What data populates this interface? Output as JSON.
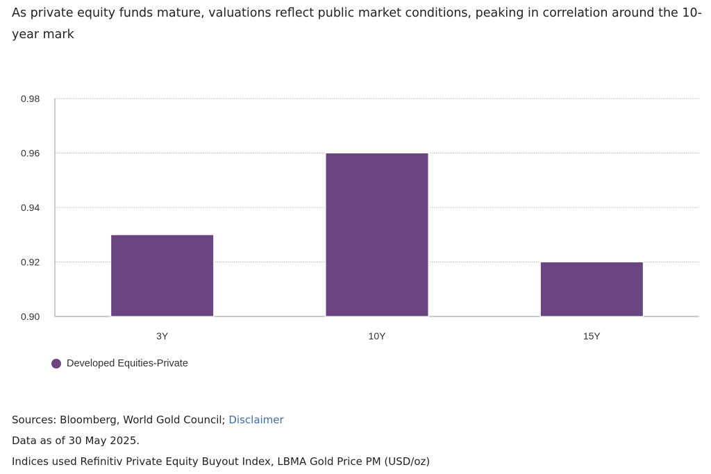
{
  "title": "As private equity funds mature, valuations reflect public market conditions, peaking in correlation around the 10-year mark",
  "chart_data": {
    "type": "bar",
    "categories": [
      "3Y",
      "10Y",
      "15Y"
    ],
    "series": [
      {
        "name": "Developed Equities-Private",
        "values": [
          0.93,
          0.96,
          0.92
        ]
      }
    ],
    "yticks": [
      "0.90",
      "0.92",
      "0.94",
      "0.96",
      "0.98"
    ],
    "ylim": [
      0.9,
      0.98
    ],
    "grid": true,
    "legend_position": "bottom-left",
    "bar_color": "#6a4582"
  },
  "legend": {
    "label": "Developed Equities-Private",
    "color": "#6a4582"
  },
  "footer": {
    "sources_prefix": "Sources: Bloomberg, World Gold Council; ",
    "disclaimer_link": "Disclaimer",
    "data_as_of": "Data as of 30 May 2025.",
    "indices": "Indices used Refinitiv Private Equity Buyout Index, LBMA Gold Price PM (USD/oz)"
  }
}
